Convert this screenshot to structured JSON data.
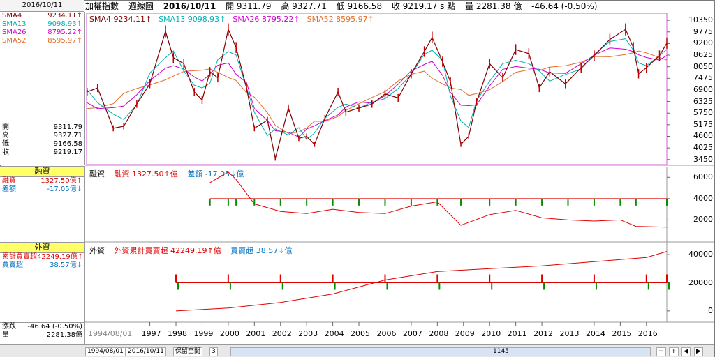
{
  "left": {
    "date": "2016/10/11",
    "sma": [
      {
        "label": "SMA4",
        "value": "9234.11",
        "color": "#800000"
      },
      {
        "label": "SMA13",
        "value": "9098.93",
        "color": "#00b0b0"
      },
      {
        "label": "SMA26",
        "value": "8795.22",
        "color": "#d000d0"
      },
      {
        "label": "SMA52",
        "value": "8595.97",
        "color": "#e07030"
      }
    ],
    "ohlc": [
      {
        "label": "開",
        "value": "9311.79"
      },
      {
        "label": "高",
        "value": "9327.71"
      },
      {
        "label": "低",
        "value": "9166.58"
      },
      {
        "label": "收",
        "value": "9219.17"
      }
    ],
    "margin_title": "融資",
    "margin_rows": [
      {
        "label": "融資",
        "value": "1327.50億",
        "arrow": "↑",
        "color": "#e00000"
      },
      {
        "label": "差額",
        "value": "-17.05億",
        "arrow": "↓",
        "color": "#0070c0"
      }
    ],
    "foreign_title": "外資",
    "foreign_rows": [
      {
        "label": "累計買賣超",
        "value": "42249.19億",
        "arrow": "↑",
        "color": "#e00000"
      },
      {
        "label": "買賣超",
        "value": "38.57億",
        "arrow": "↓",
        "color": "#0070c0"
      }
    ],
    "change_label": "漲跌",
    "change_value": "-46.64 (-0.50%)",
    "volume_label": "量",
    "volume_value": "2281.38億"
  },
  "header": {
    "index": "加權指數",
    "period": "週線圖",
    "date": "2016/10/11",
    "open": "開 9311.79",
    "high": "高 9327.71",
    "low": "低 9166.58",
    "close": "收 9219.17 s 點",
    "volume": "量 2281.38 億",
    "change": "-46.64 (-0.50%)"
  },
  "price_legend": [
    {
      "text": "SMA4 9234.11↑",
      "color": "#800000"
    },
    {
      "text": "SMA13 9098.93↑",
      "color": "#00b0b0"
    },
    {
      "text": "SMA26 8795.22↑",
      "color": "#d000d0"
    },
    {
      "text": "SMA52 8595.97↑",
      "color": "#e07030"
    }
  ],
  "margin_legend": {
    "name": "融資",
    "v1": "融資 1327.50↑億",
    "v2": "差額 -17.05↓億"
  },
  "foreign_legend": {
    "name": "外資",
    "v1": "外資累計買賣超 42249.19↑億",
    "v2": "買賣超 38.57↓億"
  },
  "bottom": {
    "from": "1994/08/01",
    "to": "2016/10/11",
    "mode": "保留空間",
    "num": "3",
    "count": "1145"
  },
  "chart_data": [
    {
      "type": "line",
      "title": "加權指數 週線圖",
      "x": [
        1994.6,
        1995,
        1995.6,
        1996,
        1996.5,
        1997,
        1997.6,
        1997.9,
        1998.3,
        1998.7,
        1999,
        1999.3,
        1999.6,
        2000.0,
        2000.3,
        2000.7,
        2001.0,
        2001.5,
        2001.8,
        2002.3,
        2002.7,
        2003.0,
        2003.3,
        2003.7,
        2004.2,
        2004.5,
        2005.0,
        2005.5,
        2006.0,
        2006.5,
        2007.0,
        2007.5,
        2007.8,
        2008.2,
        2008.5,
        2008.9,
        2009.2,
        2009.5,
        2010.0,
        2010.5,
        2011.0,
        2011.5,
        2011.9,
        2012.3,
        2012.9,
        2013.5,
        2014.0,
        2014.6,
        2015.2,
        2015.5,
        2015.7,
        2016.0,
        2016.5,
        2016.78
      ],
      "y": [
        6800,
        7000,
        5000,
        5100,
        6200,
        7200,
        9800,
        8500,
        8200,
        6800,
        6400,
        7800,
        7500,
        9900,
        9000,
        7000,
        5000,
        5400,
        3500,
        6000,
        4500,
        4600,
        4200,
        5500,
        6800,
        5800,
        6000,
        6200,
        6700,
        6500,
        7700,
        8800,
        9500,
        8300,
        7300,
        4200,
        4600,
        6300,
        8200,
        7500,
        8900,
        8700,
        7000,
        7800,
        7200,
        8000,
        8600,
        9400,
        9900,
        9000,
        7700,
        8000,
        8600,
        9219.17
      ],
      "ylim": [
        3200,
        10700
      ],
      "yticks": [
        3450,
        4025,
        4600,
        5175,
        5750,
        6325,
        6900,
        7475,
        8050,
        8625,
        9200,
        9775,
        10350
      ],
      "series_names": [
        "SMA4",
        "SMA13",
        "SMA26",
        "SMA52"
      ]
    },
    {
      "type": "bar",
      "title": "融資",
      "yticks": [
        2000,
        4000,
        6000
      ],
      "ylim": [
        0,
        7000
      ],
      "x": [
        1999.3,
        2000.0,
        2000.3,
        2001.0,
        2002.0,
        2003.0,
        2004.0,
        2005.0,
        2006.0,
        2007.0,
        2008.0,
        2008.9,
        2010.0,
        2011.0,
        2012.0,
        2013.0,
        2014.0,
        2015.0,
        2015.6,
        2016.78
      ],
      "y": [
        5500,
        6500,
        5800,
        3500,
        2800,
        2600,
        3000,
        2700,
        2600,
        3300,
        3700,
        1500,
        2500,
        2900,
        2200,
        2000,
        1900,
        2000,
        1400,
        1327.5
      ]
    },
    {
      "type": "bar",
      "title": "外資",
      "yticks": [
        0,
        20000,
        40000
      ],
      "ylim": [
        -8000,
        48000
      ],
      "x": [
        1998.0,
        2000.0,
        2002.0,
        2004.0,
        2006.0,
        2008.0,
        2010.0,
        2012.0,
        2014.0,
        2016.0,
        2016.78
      ],
      "y": [
        0,
        2000,
        6000,
        12000,
        22000,
        28000,
        30000,
        32000,
        35000,
        38000,
        42249.19
      ]
    }
  ],
  "xticks": [
    "1994/08/01",
    "1997",
    "1998",
    "1999",
    "2000",
    "2001",
    "2002",
    "2003",
    "2004",
    "2005",
    "2006",
    "2007",
    "2008",
    "2009",
    "2010",
    "2011",
    "2012",
    "2013",
    "2014",
    "2015",
    "2016"
  ]
}
